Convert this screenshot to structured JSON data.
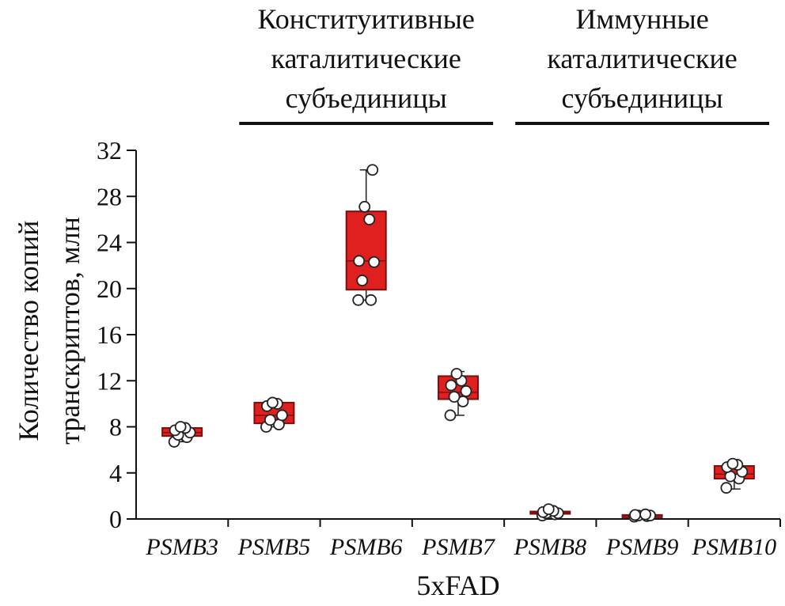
{
  "chart_data": {
    "type": "box",
    "title": "",
    "xlabel": "5xFAD",
    "ylabel_lines": [
      "Количество копий",
      "транскриптов, млн"
    ],
    "ylim": [
      0,
      32
    ],
    "yticks": [
      0,
      4,
      8,
      12,
      16,
      20,
      24,
      28,
      32
    ],
    "grid": false,
    "box_color": "#e0201f",
    "box_edge_color": "#7a1010",
    "categories": [
      "PSMB3",
      "PSMB5",
      "PSMB6",
      "PSMB7",
      "PSMB8",
      "PSMB9",
      "PSMB10"
    ],
    "groups": [
      {
        "label_lines": [
          "Конституитивные",
          "каталитические",
          "субъединицы"
        ],
        "categories": [
          "PSMB5",
          "PSMB6",
          "PSMB7"
        ]
      },
      {
        "label_lines": [
          "Иммунные",
          "каталитические",
          "субъединицы"
        ],
        "categories": [
          "PSMB8",
          "PSMB9",
          "PSMB10"
        ]
      }
    ],
    "boxes": [
      {
        "category": "PSMB3",
        "min": 6.7,
        "q1": 7.2,
        "median": 7.5,
        "q3": 7.9,
        "max": 8.0,
        "points": [
          6.7,
          7.1,
          7.3,
          7.5,
          7.7,
          7.9,
          8.0
        ]
      },
      {
        "category": "PSMB5",
        "min": 8.0,
        "q1": 8.3,
        "median": 9.0,
        "q3": 10.1,
        "max": 10.2,
        "points": [
          8.0,
          8.2,
          8.6,
          9.0,
          9.8,
          10.0,
          10.1
        ]
      },
      {
        "category": "PSMB6",
        "min": 19.0,
        "q1": 19.9,
        "median": 22.4,
        "q3": 26.7,
        "max": 30.3,
        "points": [
          19.0,
          19.0,
          20.7,
          22.3,
          22.4,
          26.0,
          27.1,
          30.3
        ]
      },
      {
        "category": "PSMB7",
        "min": 9.0,
        "q1": 10.4,
        "median": 11.0,
        "q3": 12.4,
        "max": 12.8,
        "points": [
          9.0,
          10.2,
          10.6,
          11.1,
          11.6,
          12.0,
          12.6
        ]
      },
      {
        "category": "PSMB8",
        "min": 0.3,
        "q1": 0.45,
        "median": 0.55,
        "q3": 0.65,
        "max": 0.85,
        "points": [
          0.3,
          0.4,
          0.5,
          0.5,
          0.6,
          0.7,
          0.85
        ]
      },
      {
        "category": "PSMB9",
        "min": 0.2,
        "q1": 0.25,
        "median": 0.3,
        "q3": 0.35,
        "max": 0.4,
        "points": [
          0.2,
          0.25,
          0.3,
          0.3,
          0.35,
          0.4
        ]
      },
      {
        "category": "PSMB10",
        "min": 2.6,
        "q1": 3.5,
        "median": 3.9,
        "q3": 4.6,
        "max": 4.8,
        "points": [
          2.7,
          3.5,
          3.7,
          4.1,
          4.5,
          4.7,
          4.8
        ]
      }
    ]
  }
}
